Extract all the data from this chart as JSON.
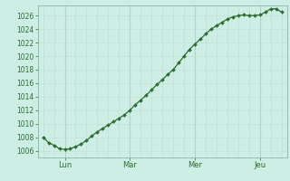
{
  "bg_color": "#cceee4",
  "grid_color_minor": "#c0ddd4",
  "grid_color_major": "#a8c8bc",
  "line_color": "#2d6e2d",
  "marker_color": "#2d6e2d",
  "ylim": [
    1005.0,
    1027.5
  ],
  "yticks": [
    1006,
    1008,
    1010,
    1012,
    1014,
    1016,
    1018,
    1020,
    1022,
    1024,
    1026
  ],
  "xtick_labels": [
    "Lun",
    "Mar",
    "Mer",
    "Jeu"
  ],
  "xtick_positions": [
    8,
    32,
    56,
    80
  ],
  "x": [
    0,
    2,
    4,
    6,
    8,
    10,
    12,
    14,
    16,
    18,
    20,
    22,
    24,
    26,
    28,
    30,
    32,
    34,
    36,
    38,
    40,
    42,
    44,
    46,
    48,
    50,
    52,
    54,
    56,
    58,
    60,
    62,
    64,
    66,
    68,
    70,
    72,
    74,
    76,
    78,
    80,
    82,
    84,
    86,
    88
  ],
  "y": [
    1008.0,
    1007.2,
    1006.8,
    1006.3,
    1006.2,
    1006.3,
    1006.6,
    1007.0,
    1007.5,
    1008.2,
    1008.8,
    1009.3,
    1009.8,
    1010.3,
    1010.8,
    1011.3,
    1012.0,
    1012.8,
    1013.5,
    1014.2,
    1015.0,
    1015.8,
    1016.5,
    1017.3,
    1018.0,
    1019.0,
    1020.0,
    1021.0,
    1021.8,
    1022.5,
    1023.3,
    1024.0,
    1024.5,
    1025.0,
    1025.5,
    1025.8,
    1026.0,
    1026.1,
    1026.0,
    1026.0,
    1026.1,
    1026.5,
    1027.0,
    1027.0,
    1026.5
  ],
  "xlabel_fontsize": 6.5,
  "ylabel_fontsize": 6.0
}
